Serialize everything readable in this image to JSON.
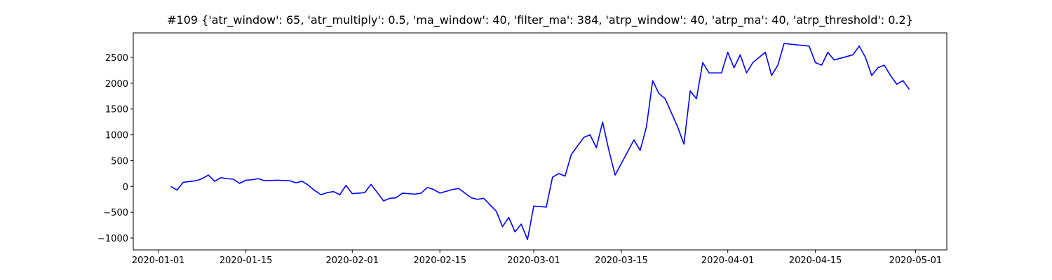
{
  "chart_data": {
    "type": "line",
    "title": "#109 {'atr_window': 65, 'atr_multiply': 0.5, 'ma_window': 40, 'filter_ma': 384, 'atrp_window': 40, 'atrp_ma': 40, 'atrp_threshold': 0.2}",
    "color": "#0000ff",
    "x": [
      "2020-01-03",
      "2020-01-04",
      "2020-01-05",
      "2020-01-07",
      "2020-01-08",
      "2020-01-09",
      "2020-01-10",
      "2020-01-11",
      "2020-01-12",
      "2020-01-13",
      "2020-01-14",
      "2020-01-15",
      "2020-01-16",
      "2020-01-17",
      "2020-01-18",
      "2020-01-20",
      "2020-01-22",
      "2020-01-23",
      "2020-01-24",
      "2020-01-25",
      "2020-01-26",
      "2020-01-27",
      "2020-01-28",
      "2020-01-29",
      "2020-01-30",
      "2020-01-31",
      "2020-02-01",
      "2020-02-03",
      "2020-02-04",
      "2020-02-05",
      "2020-02-06",
      "2020-02-07",
      "2020-02-08",
      "2020-02-09",
      "2020-02-11",
      "2020-02-12",
      "2020-02-13",
      "2020-02-14",
      "2020-02-15",
      "2020-02-17",
      "2020-02-18",
      "2020-02-19",
      "2020-02-20",
      "2020-02-21",
      "2020-02-22",
      "2020-02-24",
      "2020-02-25",
      "2020-02-26",
      "2020-02-27",
      "2020-02-28",
      "2020-02-29",
      "2020-03-01",
      "2020-03-03",
      "2020-03-04",
      "2020-03-05",
      "2020-03-06",
      "2020-03-07",
      "2020-03-09",
      "2020-03-10",
      "2020-03-11",
      "2020-03-12",
      "2020-03-13",
      "2020-03-14",
      "2020-03-17",
      "2020-03-18",
      "2020-03-19",
      "2020-03-20",
      "2020-03-21",
      "2020-03-22",
      "2020-03-24",
      "2020-03-25",
      "2020-03-26",
      "2020-03-27",
      "2020-03-28",
      "2020-03-29",
      "2020-03-31",
      "2020-04-01",
      "2020-04-02",
      "2020-04-03",
      "2020-04-04",
      "2020-04-05",
      "2020-04-07",
      "2020-04-08",
      "2020-04-09",
      "2020-04-10",
      "2020-04-14",
      "2020-04-15",
      "2020-04-16",
      "2020-04-17",
      "2020-04-18",
      "2020-04-21",
      "2020-04-22",
      "2020-04-23",
      "2020-04-24",
      "2020-04-25",
      "2020-04-26",
      "2020-04-27",
      "2020-04-28",
      "2020-04-29",
      "2020-04-30"
    ],
    "values": [
      0,
      -70,
      80,
      110,
      150,
      220,
      100,
      170,
      150,
      140,
      60,
      120,
      130,
      150,
      110,
      120,
      110,
      70,
      100,
      20,
      -80,
      -160,
      -120,
      -100,
      -160,
      20,
      -140,
      -120,
      40,
      -120,
      -280,
      -230,
      -220,
      -130,
      -150,
      -130,
      -20,
      -60,
      -130,
      -60,
      -40,
      -130,
      -220,
      -250,
      -230,
      -480,
      -780,
      -600,
      -880,
      -730,
      -1030,
      -380,
      -400,
      180,
      250,
      200,
      620,
      950,
      1000,
      750,
      1250,
      700,
      220,
      900,
      700,
      1150,
      2050,
      1800,
      1700,
      1150,
      820,
      1850,
      1700,
      2400,
      2200,
      2200,
      2600,
      2300,
      2550,
      2200,
      2400,
      2600,
      2150,
      2350,
      2770,
      2720,
      2400,
      2350,
      2600,
      2450,
      2550,
      2720,
      2500,
      2150,
      2300,
      2350,
      2150,
      1980,
      2050,
      1880
    ],
    "xlim": [
      "2019-12-28",
      "2020-05-06"
    ],
    "xticks": [
      "2020-01-01",
      "2020-01-15",
      "2020-02-01",
      "2020-02-15",
      "2020-03-01",
      "2020-03-15",
      "2020-04-01",
      "2020-04-15",
      "2020-05-01"
    ],
    "ylim": [
      -1230,
      2975
    ],
    "yticks": [
      {
        "value": -1000,
        "label": "−1000"
      },
      {
        "value": -500,
        "label": "−500"
      },
      0,
      500,
      1000,
      1500,
      2000,
      2500
    ]
  }
}
